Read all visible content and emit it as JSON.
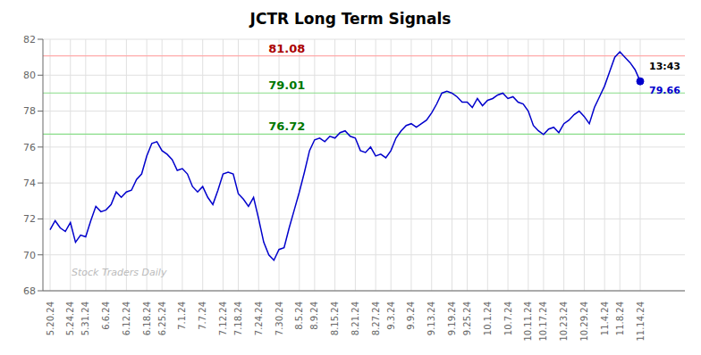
{
  "chart_data": {
    "type": "line",
    "title": "JCTR Long Term Signals",
    "categories": [
      "5.20.24",
      null,
      null,
      null,
      "5.24.24",
      null,
      null,
      "5.31.24",
      null,
      null,
      null,
      "6.6.24",
      null,
      null,
      null,
      "6.12.24",
      null,
      null,
      null,
      "6.18.24",
      null,
      null,
      "6.25.24",
      null,
      null,
      null,
      "7.1.24",
      null,
      null,
      null,
      "7.7.24",
      null,
      null,
      null,
      "7.12.24",
      null,
      null,
      "7.18.24",
      null,
      null,
      null,
      "7.24.24",
      null,
      null,
      null,
      "7.30.24",
      null,
      null,
      null,
      "8.5.24",
      null,
      null,
      "8.9.24",
      null,
      null,
      null,
      "8.15.24",
      null,
      null,
      null,
      "8.21.24",
      null,
      null,
      null,
      "8.27.24",
      null,
      null,
      "9.3.24",
      null,
      null,
      null,
      "9.9.24",
      null,
      null,
      null,
      "9.13.24",
      null,
      null,
      null,
      "9.19.24",
      null,
      null,
      "9.25.24",
      null,
      null,
      null,
      "10.1.24",
      null,
      null,
      null,
      "10.7.24",
      null,
      null,
      null,
      "10.11.24",
      null,
      null,
      "10.17.24",
      null,
      null,
      null,
      "10.23.24",
      null,
      null,
      null,
      "10.29.24",
      null,
      null,
      null,
      "11.4.24",
      null,
      null,
      "11.8.24",
      null,
      null,
      null,
      "11.14.24"
    ],
    "values": [
      71.4,
      71.9,
      71.5,
      71.3,
      71.8,
      70.7,
      71.1,
      71.0,
      71.9,
      72.7,
      72.4,
      72.5,
      72.8,
      73.5,
      73.2,
      73.5,
      73.6,
      74.2,
      74.5,
      75.5,
      76.2,
      76.3,
      75.8,
      75.6,
      75.3,
      74.7,
      74.8,
      74.5,
      73.8,
      73.5,
      73.8,
      73.2,
      72.8,
      73.6,
      74.5,
      74.6,
      74.5,
      73.4,
      73.1,
      72.7,
      73.2,
      72.0,
      70.7,
      70.0,
      69.7,
      70.3,
      70.4,
      71.5,
      72.5,
      73.5,
      74.6,
      75.8,
      76.4,
      76.5,
      76.3,
      76.6,
      76.5,
      76.8,
      76.9,
      76.6,
      76.5,
      75.8,
      75.7,
      76.0,
      75.5,
      75.6,
      75.4,
      75.8,
      76.5,
      76.9,
      77.2,
      77.3,
      77.1,
      77.3,
      77.5,
      77.9,
      78.4,
      79.0,
      79.1,
      79.0,
      78.8,
      78.5,
      78.5,
      78.2,
      78.7,
      78.3,
      78.6,
      78.7,
      78.9,
      79.0,
      78.7,
      78.8,
      78.5,
      78.4,
      78.0,
      77.2,
      76.9,
      76.7,
      77.0,
      77.1,
      76.8,
      77.3,
      77.5,
      77.8,
      78.0,
      77.7,
      77.3,
      78.2,
      78.8,
      79.4,
      80.2,
      81.0,
      81.3,
      81.0,
      80.7,
      80.3,
      79.66
    ],
    "color": "#0000cc",
    "ylim": [
      68,
      82
    ],
    "yticks": [
      68,
      70,
      72,
      74,
      76,
      78,
      80,
      82
    ],
    "grid": true,
    "annotations": [
      {
        "type": "hline",
        "value": 81.08,
        "text": "81.08",
        "color": "#ffaaaa",
        "text_color": "#aa0000"
      },
      {
        "type": "hline",
        "value": 79.01,
        "text": "79.01",
        "color": "#88dd88",
        "text_color": "#007700"
      },
      {
        "type": "hline",
        "value": 76.72,
        "text": "76.72",
        "color": "#88dd88",
        "text_color": "#007700"
      },
      {
        "type": "last_point",
        "text": "13:43"
      },
      {
        "type": "last_point_value",
        "text": "79.66",
        "value": 79.66,
        "color": "#0000cc"
      },
      {
        "type": "watermark",
        "text": "Stock Traders Daily",
        "color": "#bbbbbb"
      }
    ]
  }
}
